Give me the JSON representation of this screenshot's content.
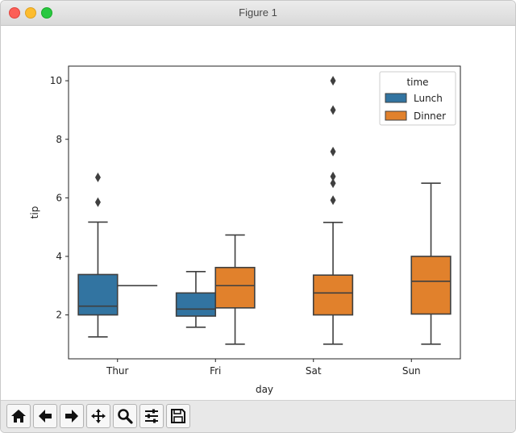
{
  "window": {
    "title": "Figure 1"
  },
  "toolbar": {
    "buttons": [
      {
        "icon": "home-icon"
      },
      {
        "icon": "back-arrow-icon"
      },
      {
        "icon": "forward-arrow-icon"
      },
      {
        "icon": "pan-icon"
      },
      {
        "icon": "zoom-icon"
      },
      {
        "icon": "configure-subplots-icon"
      },
      {
        "icon": "save-icon"
      }
    ]
  },
  "chart_data": {
    "type": "box",
    "xlabel": "day",
    "ylabel": "tip",
    "categories": [
      "Thur",
      "Fri",
      "Sat",
      "Sun"
    ],
    "yticks": [
      2,
      4,
      6,
      8,
      10
    ],
    "ylim": [
      0.5,
      10.5
    ],
    "grid": false,
    "legend": {
      "title": "time",
      "placement": "top-right"
    },
    "colors": {
      "Lunch": "#3274a1",
      "Dinner": "#e1812c"
    },
    "series": [
      {
        "name": "Lunch",
        "boxes": [
          {
            "category": "Thur",
            "whisker_low": 1.25,
            "q1": 2.0,
            "median": 2.3,
            "q3": 3.38,
            "whisker_high": 5.17,
            "outliers": [
              5.85,
              6.7
            ]
          },
          {
            "category": "Fri",
            "whisker_low": 1.58,
            "q1": 1.96,
            "median": 2.2,
            "q3": 2.75,
            "whisker_high": 3.48,
            "outliers": []
          },
          null,
          null
        ]
      },
      {
        "name": "Dinner",
        "boxes": [
          {
            "category": "Thur",
            "whisker_low": 3.0,
            "q1": 3.0,
            "median": 3.0,
            "q3": 3.0,
            "whisker_high": 3.0,
            "outliers": []
          },
          {
            "category": "Fri",
            "whisker_low": 1.0,
            "q1": 2.24,
            "median": 3.0,
            "q3": 3.62,
            "whisker_high": 4.73,
            "outliers": []
          },
          {
            "category": "Sat",
            "whisker_low": 1.0,
            "q1": 2.0,
            "median": 2.75,
            "q3": 3.36,
            "whisker_high": 5.16,
            "outliers": [
              5.92,
              6.5,
              6.73,
              7.58,
              9.0,
              10.0
            ]
          },
          {
            "category": "Sun",
            "whisker_low": 1.0,
            "q1": 2.03,
            "median": 3.15,
            "q3": 4.0,
            "whisker_high": 6.5,
            "outliers": []
          }
        ]
      }
    ]
  }
}
